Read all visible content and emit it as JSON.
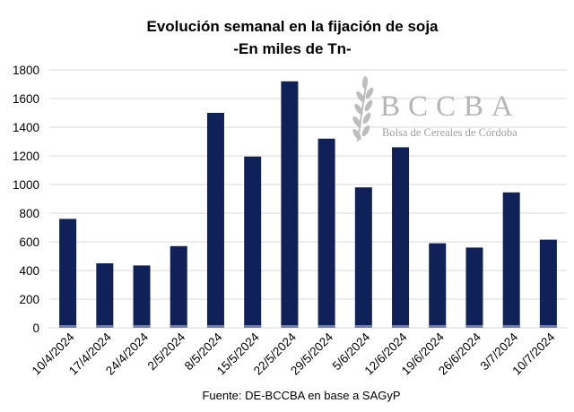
{
  "chart_data": {
    "type": "bar",
    "title": "Evolución semanal en la fijación de soja",
    "subtitle": "-En miles de Tn-",
    "source": "Fuente: DE-BCCBA en base a SAGyP",
    "categories": [
      "10/4/2024",
      "17/4/2024",
      "24/4/2024",
      "2/5/2024",
      "8/5/2024",
      "15/5/2024",
      "22/5/2024",
      "29/5/2024",
      "5/6/2024",
      "12/6/2024",
      "19/6/2024",
      "26/6/2024",
      "3/7/2024",
      "10/7/2024"
    ],
    "values": [
      760,
      450,
      435,
      570,
      1500,
      1195,
      1720,
      1320,
      980,
      1260,
      590,
      560,
      945,
      615
    ],
    "yticks": [
      0,
      200,
      400,
      600,
      800,
      1000,
      1200,
      1400,
      1600,
      1800
    ],
    "ylim": [
      0,
      1800
    ],
    "grid": true,
    "bar_color": "#0f2158",
    "grid_color": "#d9d9d9"
  },
  "watermark": {
    "logo_text": "BCCBA",
    "logo_subtext": "Bolsa de Cereales de Córdoba",
    "color": "#b5b5b5"
  }
}
